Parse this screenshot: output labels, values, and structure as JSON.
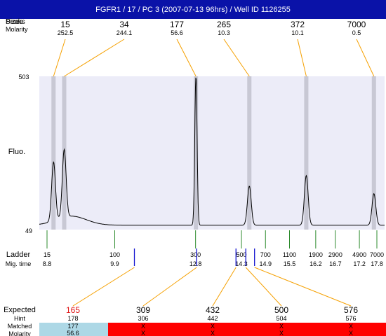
{
  "title": "FGFR1 / 17 / PC 3 (2007-07-13 96hrs) / Well ID 1126255",
  "colors": {
    "title_bg": "#0a12a8",
    "plot_bg": "#ececf8",
    "peak_band": "#c8c8d4",
    "connector": "#f5a000",
    "ladder_tick": "#2e8b2e",
    "sample_tick": "#1515d0",
    "expected_highlight": "#e01515",
    "matched_ok": "#add8e6",
    "matched_miss": "#ff0000"
  },
  "labels": {
    "peak_sizes_label": "Peaks",
    "sizes_label": "Sizes",
    "molarity_label": "Molarity",
    "fluo": "Fluo.",
    "ladder": "Ladder",
    "mig_time": "Mig. time",
    "expected": "Expected",
    "hint": "Hint",
    "matched": "Matched",
    "molarity_bottom": "Molarity"
  },
  "chart_data": {
    "type": "line",
    "ylim": [
      49,
      503
    ],
    "y_ticks": [
      "503",
      "49"
    ],
    "xlim": [
      8.4,
      18.1
    ],
    "peaks": [
      {
        "size": "15",
        "molarity": "252.5",
        "time": 8.8,
        "height": 0.39
      },
      {
        "size": "34",
        "molarity": "244.1",
        "time": 9.1,
        "height": 0.45
      },
      {
        "size": "177",
        "molarity": "56.6",
        "time": 12.8,
        "height": 1.0
      },
      {
        "size": "265",
        "molarity": "10.3",
        "time": 14.3,
        "height": 0.26
      },
      {
        "size": "372",
        "molarity": "10.1",
        "time": 15.9,
        "height": 0.33
      },
      {
        "size": "7000",
        "molarity": "0.5",
        "time": 17.8,
        "height": 0.21
      }
    ],
    "ladder": [
      {
        "size": "15",
        "time": "8.8",
        "t": 8.8
      },
      {
        "size": "100",
        "time": "9.9",
        "t": 11.9
      },
      {
        "size": "300",
        "time": "12.8",
        "t": 15.6
      },
      {
        "size": "500",
        "time": "14.3",
        "t": 17.7
      },
      {
        "size": "700",
        "time": "14.9",
        "t": 18.8
      },
      {
        "size": "1100",
        "time": "15.5",
        "t": 19.9
      },
      {
        "size": "1900",
        "time": "16.2",
        "t": 21.1
      },
      {
        "size": "2900",
        "time": "16.7",
        "t": 22.0
      },
      {
        "size": "4900",
        "time": "17.2",
        "t": 23.1
      },
      {
        "size": "7000",
        "time": "17.8",
        "t": 23.9
      }
    ],
    "expected": [
      {
        "expected": "165",
        "hint": "178",
        "matched": "177",
        "molarity": "56.6",
        "ok": true,
        "highlight": true,
        "mark": 12.8
      },
      {
        "expected": "309",
        "hint": "306",
        "matched": "X",
        "molarity": "X",
        "ok": false,
        "highlight": false,
        "mark": 15.65
      },
      {
        "expected": "432",
        "hint": "442",
        "matched": "X",
        "molarity": "X",
        "ok": false,
        "highlight": false,
        "mark": 17.45
      },
      {
        "expected": "500",
        "hint": "504",
        "matched": "X",
        "molarity": "X",
        "ok": false,
        "highlight": false,
        "mark": 17.9
      },
      {
        "expected": "576",
        "hint": "576",
        "matched": "X",
        "molarity": "X",
        "ok": false,
        "highlight": false,
        "mark": 18.3
      }
    ]
  }
}
